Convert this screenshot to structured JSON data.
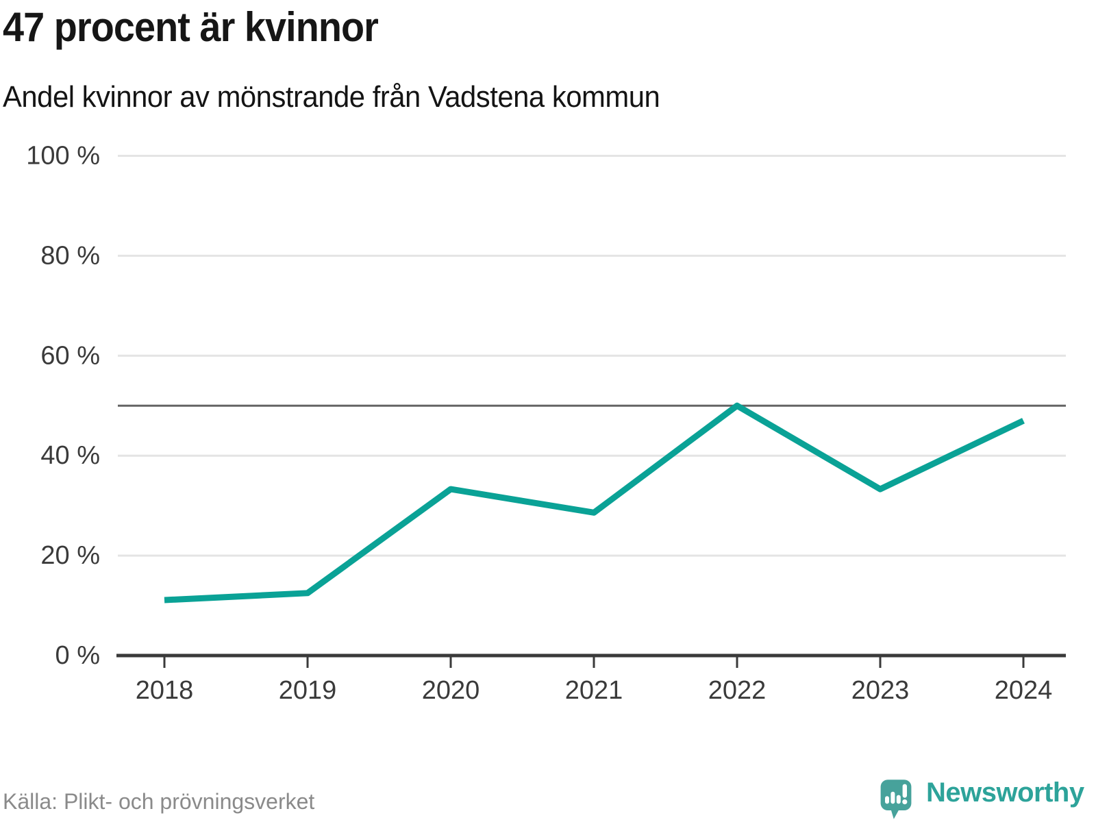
{
  "header": {
    "title": "47 procent är kvinnor",
    "subtitle": "Andel kvinnor av mönstrande från Vadstena kommun"
  },
  "footer": {
    "source": "Källa: Plikt- och prövningsverket",
    "brand": "Newsworthy"
  },
  "colors": {
    "line": "#0aa296",
    "reference": "#646464",
    "grid": "#e4e4e4",
    "axis": "#3a3a3a",
    "tick_text": "#3a3a3a",
    "title_text": "#161616",
    "source_text": "#8a8a8a",
    "brand_teal": "#2da39a",
    "logo_pin": "#47a29b"
  },
  "chart_data": {
    "type": "line",
    "title": "47 procent är kvinnor",
    "subtitle": "Andel kvinnor av mönstrande från Vadstena kommun",
    "x": [
      2018,
      2019,
      2020,
      2021,
      2022,
      2023,
      2024
    ],
    "series": [
      {
        "name": "Andel kvinnor av mönstrande, Vadstena kommun",
        "values": [
          11.1,
          12.5,
          33.3,
          28.6,
          50,
          33.3,
          47
        ]
      }
    ],
    "xlabel": "",
    "ylabel": "",
    "ylim": [
      0,
      100
    ],
    "yticks": [
      0,
      20,
      40,
      60,
      80,
      100
    ],
    "ytick_labels": [
      "0 %",
      "20 %",
      "40 %",
      "60 %",
      "80 %",
      "100 %"
    ],
    "reference_line": 50,
    "grid": "horizontal",
    "legend": "none"
  }
}
